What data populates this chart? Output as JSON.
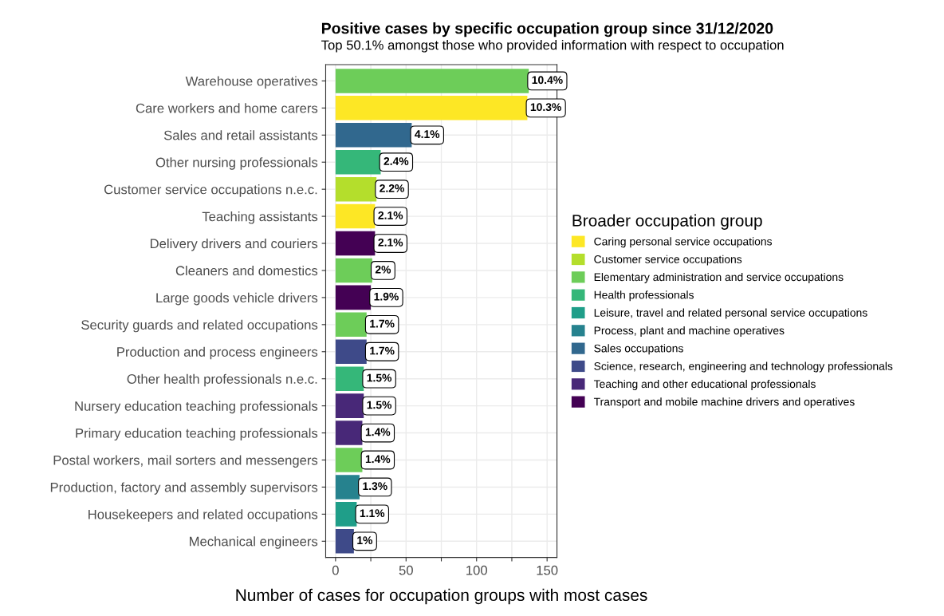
{
  "chart_data": {
    "type": "bar",
    "orientation": "horizontal",
    "title": "Positive cases by specific occupation group since 31/12/2020",
    "subtitle": "Top 50.1% amongst those who provided information with respect to occupation",
    "xlabel": "Number of cases for occupation groups with most cases",
    "legend_title": "Broader occupation group",
    "categories": [
      "Warehouse operatives",
      "Care workers and home carers",
      "Sales and retail assistants",
      "Other nursing professionals",
      "Customer service occupations n.e.c.",
      "Teaching assistants",
      "Delivery drivers and couriers",
      "Cleaners and domestics",
      "Large goods vehicle drivers",
      "Security guards and related occupations",
      "Production and process engineers",
      "Other health professionals n.e.c.",
      "Nursery education teaching professionals",
      "Primary education teaching professionals",
      "Postal workers, mail sorters and messengers",
      "Production, factory and assembly supervisors",
      "Housekeepers and related occupations",
      "Mechanical engineers"
    ],
    "series": [
      {
        "name": "Caring personal service occupations",
        "color": "#fde725",
        "values": [
          null,
          136,
          null,
          null,
          null,
          28,
          null,
          null,
          null,
          null,
          null,
          null,
          null,
          null,
          null,
          null,
          null,
          null
        ]
      },
      {
        "name": "Customer service occupations",
        "color": "#b4de2c",
        "values": [
          null,
          null,
          null,
          null,
          29,
          null,
          null,
          null,
          null,
          null,
          null,
          null,
          null,
          null,
          null,
          null,
          null,
          null
        ]
      },
      {
        "name": "Elementary administration and service occupations",
        "color": "#6dcd59",
        "values": [
          137,
          null,
          null,
          null,
          null,
          null,
          null,
          26,
          null,
          22,
          null,
          null,
          null,
          null,
          19,
          null,
          null,
          null
        ]
      },
      {
        "name": "Health professionals",
        "color": "#35b779",
        "values": [
          null,
          null,
          null,
          32,
          null,
          null,
          null,
          null,
          null,
          null,
          null,
          20,
          null,
          null,
          null,
          null,
          null,
          null
        ]
      },
      {
        "name": "Leisure, travel and related personal service occupations",
        "color": "#1f9e89",
        "values": [
          null,
          null,
          null,
          null,
          null,
          null,
          null,
          null,
          null,
          null,
          null,
          null,
          null,
          null,
          null,
          null,
          15,
          null
        ]
      },
      {
        "name": "Process, plant and machine operatives",
        "color": "#26828e",
        "values": [
          null,
          null,
          null,
          null,
          null,
          null,
          null,
          null,
          null,
          null,
          null,
          null,
          null,
          null,
          null,
          17,
          null,
          null
        ]
      },
      {
        "name": "Sales occupations",
        "color": "#31688e",
        "values": [
          null,
          null,
          54,
          null,
          null,
          null,
          null,
          null,
          null,
          null,
          null,
          null,
          null,
          null,
          null,
          null,
          null,
          null
        ]
      },
      {
        "name": "Science, research, engineering and technology professionals",
        "color": "#3e4a89",
        "values": [
          null,
          null,
          null,
          null,
          null,
          null,
          null,
          null,
          null,
          null,
          22,
          null,
          null,
          null,
          null,
          null,
          null,
          13
        ]
      },
      {
        "name": "Teaching and other educational professionals",
        "color": "#482878",
        "values": [
          null,
          null,
          null,
          null,
          null,
          null,
          null,
          null,
          null,
          null,
          null,
          null,
          20,
          19,
          null,
          null,
          null,
          null
        ]
      },
      {
        "name": "Transport and mobile machine drivers and operatives",
        "color": "#440154",
        "values": [
          null,
          null,
          null,
          null,
          null,
          null,
          28,
          null,
          25,
          null,
          null,
          null,
          null,
          null,
          null,
          null,
          null,
          null
        ]
      }
    ],
    "value_labels": [
      "10.4%",
      "10.3%",
      "4.1%",
      "2.4%",
      "2.2%",
      "2.1%",
      "2.1%",
      "2%",
      "1.9%",
      "1.7%",
      "1.7%",
      "1.5%",
      "1.5%",
      "1.4%",
      "1.4%",
      "1.3%",
      "1.1%",
      "1%"
    ],
    "xlim": [
      -7,
      157
    ],
    "xticks": [
      0,
      {
        "value": 25,
        "label": null
      },
      50,
      {
        "value": 75,
        "label": null
      },
      100,
      {
        "value": 125,
        "label": null
      },
      150
    ],
    "grid": true,
    "legend": "right"
  }
}
